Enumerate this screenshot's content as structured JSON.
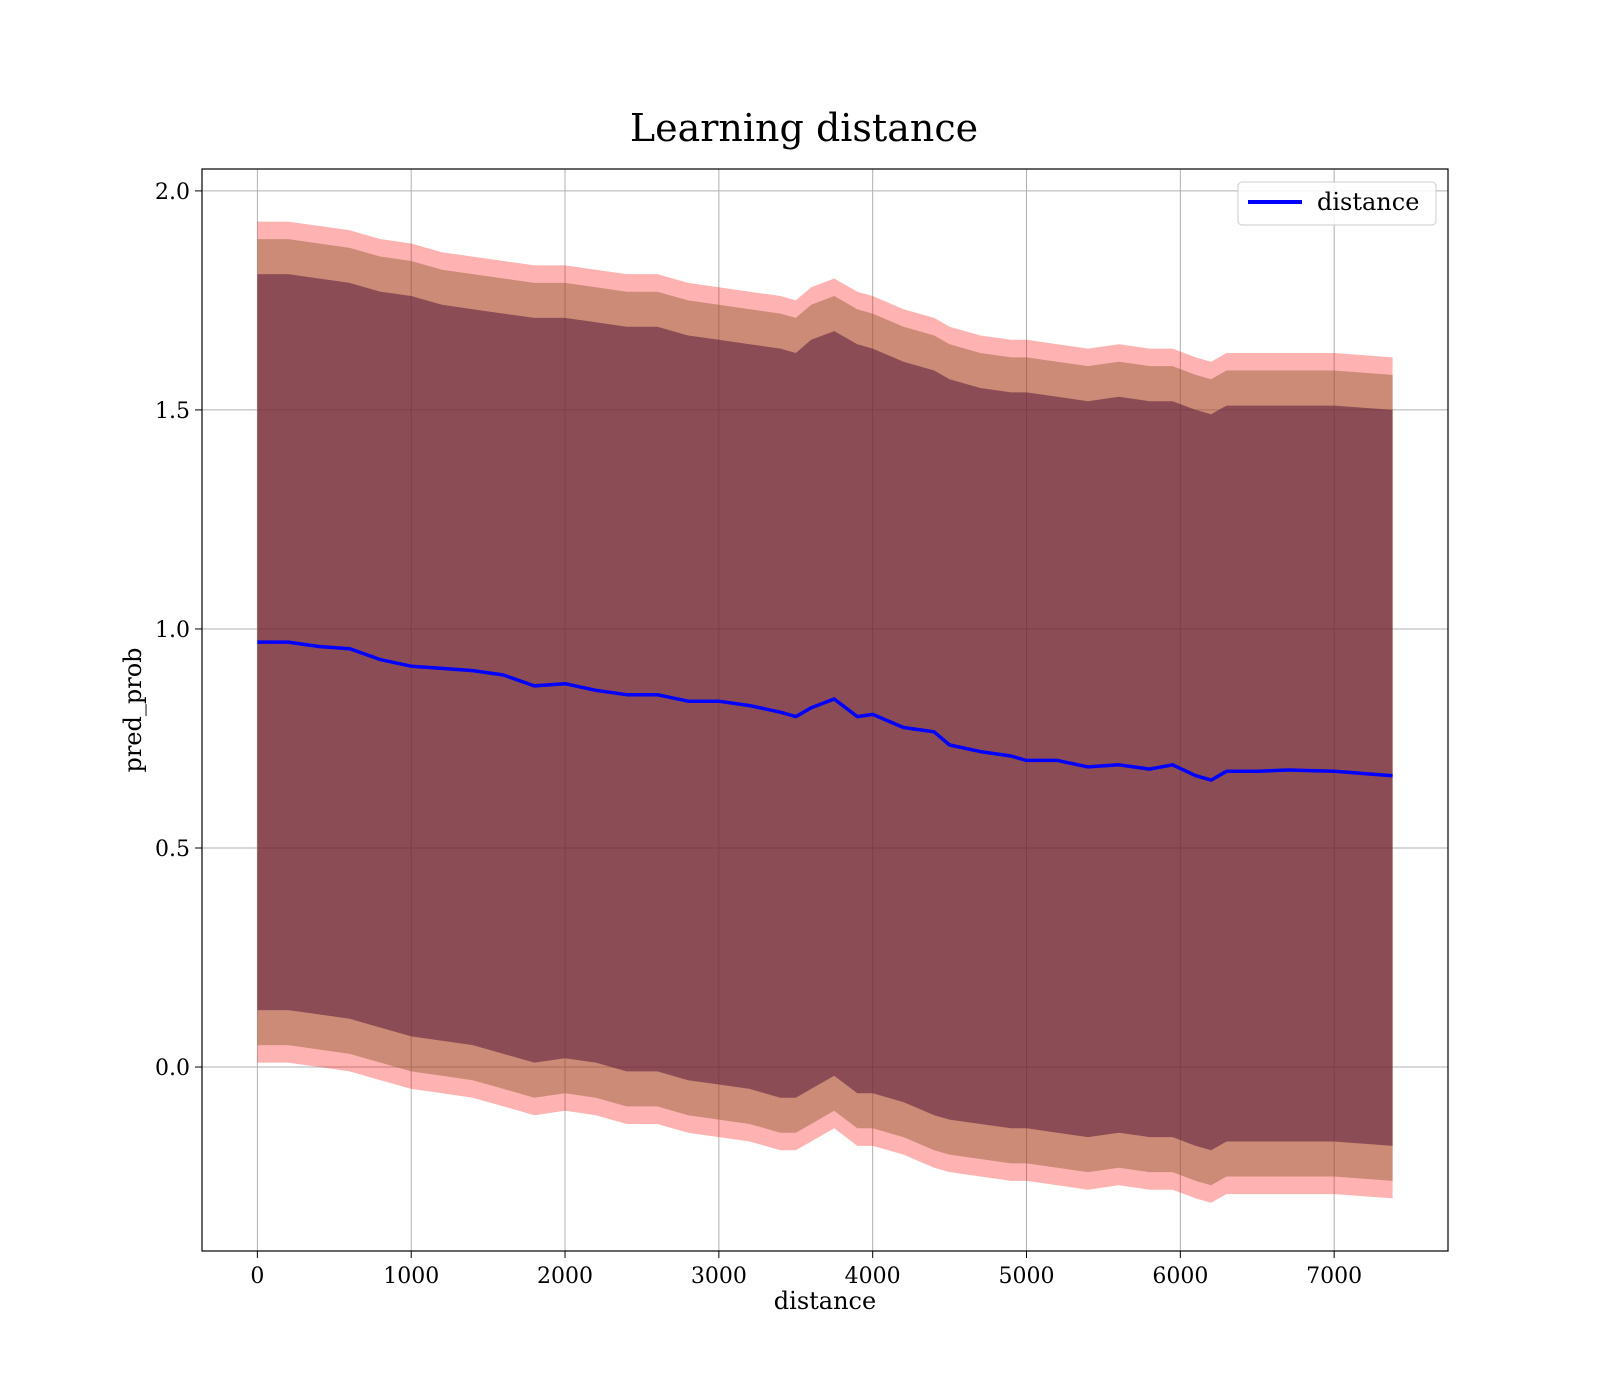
{
  "chart_data": {
    "type": "line",
    "title": "Learning distance",
    "xlabel": "distance",
    "ylabel": "pred_prob",
    "xlim": [
      -360,
      7740
    ],
    "ylim": [
      -0.42,
      2.05
    ],
    "xticks": [
      0,
      1000,
      2000,
      3000,
      4000,
      5000,
      6000,
      7000
    ],
    "xtick_labels": [
      "0",
      "1000",
      "2000",
      "3000",
      "4000",
      "5000",
      "6000",
      "7000"
    ],
    "yticks": [
      0.0,
      0.5,
      1.0,
      1.5,
      2.0
    ],
    "ytick_labels": [
      "0.0",
      "0.5",
      "1.0",
      "1.5",
      "2.0"
    ],
    "grid": true,
    "legend_position": "top-right",
    "colors": {
      "line": "#0000ff",
      "band_outer": "#ff0000",
      "band_middle": "#8c5a2e",
      "band_inner": "#5a1a3a",
      "grid": "#b0b0b0"
    },
    "x": [
      0,
      200,
      400,
      600,
      800,
      1000,
      1200,
      1400,
      1600,
      1800,
      2000,
      2200,
      2400,
      2600,
      2800,
      3000,
      3200,
      3400,
      3500,
      3600,
      3750,
      3900,
      4000,
      4200,
      4400,
      4500,
      4700,
      4900,
      5000,
      5200,
      5400,
      5600,
      5800,
      5950,
      6100,
      6200,
      6300,
      6500,
      6700,
      7000,
      7380
    ],
    "series": [
      {
        "name": "distance",
        "values": [
          0.97,
          0.97,
          0.96,
          0.955,
          0.93,
          0.915,
          0.91,
          0.905,
          0.895,
          0.87,
          0.875,
          0.86,
          0.85,
          0.85,
          0.835,
          0.835,
          0.825,
          0.81,
          0.8,
          0.82,
          0.84,
          0.8,
          0.805,
          0.775,
          0.765,
          0.735,
          0.72,
          0.71,
          0.7,
          0.7,
          0.685,
          0.69,
          0.68,
          0.69,
          0.665,
          0.655,
          0.675,
          0.675,
          0.678,
          0.675,
          0.665
        ]
      }
    ],
    "bands": [
      {
        "level": "outer",
        "upper": [
          1.93,
          1.93,
          1.92,
          1.91,
          1.89,
          1.88,
          1.86,
          1.85,
          1.84,
          1.83,
          1.83,
          1.82,
          1.81,
          1.81,
          1.79,
          1.78,
          1.77,
          1.76,
          1.75,
          1.78,
          1.8,
          1.77,
          1.76,
          1.73,
          1.71,
          1.69,
          1.67,
          1.66,
          1.66,
          1.65,
          1.64,
          1.65,
          1.64,
          1.64,
          1.62,
          1.61,
          1.63,
          1.63,
          1.63,
          1.63,
          1.62
        ],
        "lower": [
          0.01,
          0.01,
          0.0,
          -0.01,
          -0.03,
          -0.05,
          -0.06,
          -0.07,
          -0.09,
          -0.11,
          -0.1,
          -0.11,
          -0.13,
          -0.13,
          -0.15,
          -0.16,
          -0.17,
          -0.19,
          -0.19,
          -0.17,
          -0.14,
          -0.18,
          -0.18,
          -0.2,
          -0.23,
          -0.24,
          -0.25,
          -0.26,
          -0.26,
          -0.27,
          -0.28,
          -0.27,
          -0.28,
          -0.28,
          -0.3,
          -0.31,
          -0.29,
          -0.29,
          -0.29,
          -0.29,
          -0.3
        ]
      },
      {
        "level": "middle",
        "upper": [
          1.89,
          1.89,
          1.88,
          1.87,
          1.85,
          1.84,
          1.82,
          1.81,
          1.8,
          1.79,
          1.79,
          1.78,
          1.77,
          1.77,
          1.75,
          1.74,
          1.73,
          1.72,
          1.71,
          1.74,
          1.76,
          1.73,
          1.72,
          1.69,
          1.67,
          1.65,
          1.63,
          1.62,
          1.62,
          1.61,
          1.6,
          1.61,
          1.6,
          1.6,
          1.58,
          1.57,
          1.59,
          1.59,
          1.59,
          1.59,
          1.58
        ],
        "lower": [
          0.05,
          0.05,
          0.04,
          0.03,
          0.01,
          -0.01,
          -0.02,
          -0.03,
          -0.05,
          -0.07,
          -0.06,
          -0.07,
          -0.09,
          -0.09,
          -0.11,
          -0.12,
          -0.13,
          -0.15,
          -0.15,
          -0.13,
          -0.1,
          -0.14,
          -0.14,
          -0.16,
          -0.19,
          -0.2,
          -0.21,
          -0.22,
          -0.22,
          -0.23,
          -0.24,
          -0.23,
          -0.24,
          -0.24,
          -0.26,
          -0.27,
          -0.25,
          -0.25,
          -0.25,
          -0.25,
          -0.26
        ]
      },
      {
        "level": "inner",
        "upper": [
          1.81,
          1.81,
          1.8,
          1.79,
          1.77,
          1.76,
          1.74,
          1.73,
          1.72,
          1.71,
          1.71,
          1.7,
          1.69,
          1.69,
          1.67,
          1.66,
          1.65,
          1.64,
          1.63,
          1.66,
          1.68,
          1.65,
          1.64,
          1.61,
          1.59,
          1.57,
          1.55,
          1.54,
          1.54,
          1.53,
          1.52,
          1.53,
          1.52,
          1.52,
          1.5,
          1.49,
          1.51,
          1.51,
          1.51,
          1.51,
          1.5
        ],
        "lower": [
          0.13,
          0.13,
          0.12,
          0.11,
          0.09,
          0.07,
          0.06,
          0.05,
          0.03,
          0.01,
          0.02,
          0.01,
          -0.01,
          -0.01,
          -0.03,
          -0.04,
          -0.05,
          -0.07,
          -0.07,
          -0.05,
          -0.02,
          -0.06,
          -0.06,
          -0.08,
          -0.11,
          -0.12,
          -0.13,
          -0.14,
          -0.14,
          -0.15,
          -0.16,
          -0.15,
          -0.16,
          -0.16,
          -0.18,
          -0.19,
          -0.17,
          -0.17,
          -0.17,
          -0.17,
          -0.18
        ]
      }
    ]
  }
}
